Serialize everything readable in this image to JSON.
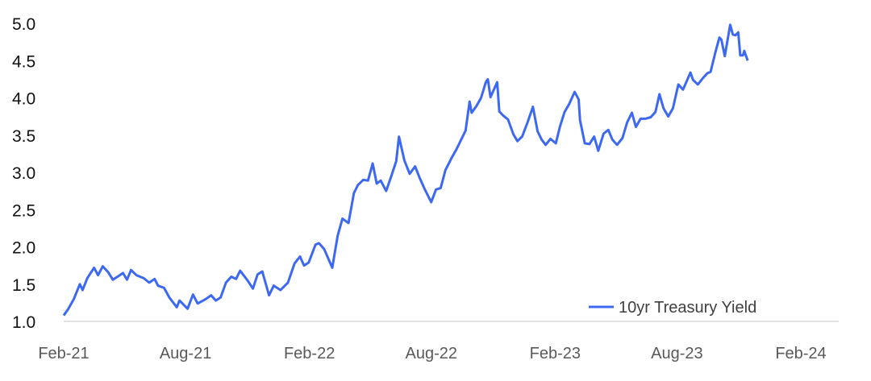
{
  "chart_data": {
    "type": "line",
    "title": "",
    "xlabel": "",
    "ylabel": "",
    "ylim": [
      1.0,
      5.0
    ],
    "y_ticks": [
      "1.0",
      "1.5",
      "2.0",
      "2.5",
      "3.0",
      "3.5",
      "4.0",
      "4.5",
      "5.0"
    ],
    "x_ticks": [
      {
        "label": "Feb-21",
        "date": "2021-02-01"
      },
      {
        "label": "Aug-21",
        "date": "2021-08-01"
      },
      {
        "label": "Feb-22",
        "date": "2022-02-01"
      },
      {
        "label": "Aug-22",
        "date": "2022-08-01"
      },
      {
        "label": "Feb-23",
        "date": "2023-02-01"
      },
      {
        "label": "Aug-23",
        "date": "2023-08-01"
      },
      {
        "label": "Feb-24",
        "date": "2024-02-01"
      }
    ],
    "grid": false,
    "legend": "bottom-right",
    "series": [
      {
        "name": "10yr Treasury Yield",
        "color": "#3d68f2",
        "points": [
          [
            "2021-02-01",
            1.08
          ],
          [
            "2021-02-08",
            1.17
          ],
          [
            "2021-02-16",
            1.3
          ],
          [
            "2021-02-25",
            1.5
          ],
          [
            "2021-03-01",
            1.42
          ],
          [
            "2021-03-08",
            1.58
          ],
          [
            "2021-03-18",
            1.72
          ],
          [
            "2021-03-24",
            1.62
          ],
          [
            "2021-03-31",
            1.74
          ],
          [
            "2021-04-08",
            1.66
          ],
          [
            "2021-04-15",
            1.56
          ],
          [
            "2021-04-22",
            1.6
          ],
          [
            "2021-04-30",
            1.65
          ],
          [
            "2021-05-06",
            1.56
          ],
          [
            "2021-05-12",
            1.69
          ],
          [
            "2021-05-20",
            1.62
          ],
          [
            "2021-05-31",
            1.58
          ],
          [
            "2021-06-08",
            1.52
          ],
          [
            "2021-06-16",
            1.57
          ],
          [
            "2021-06-21",
            1.48
          ],
          [
            "2021-06-30",
            1.45
          ],
          [
            "2021-07-08",
            1.32
          ],
          [
            "2021-07-19",
            1.19
          ],
          [
            "2021-07-23",
            1.28
          ],
          [
            "2021-08-04",
            1.17
          ],
          [
            "2021-08-12",
            1.36
          ],
          [
            "2021-08-19",
            1.24
          ],
          [
            "2021-08-31",
            1.3
          ],
          [
            "2021-09-08",
            1.35
          ],
          [
            "2021-09-15",
            1.28
          ],
          [
            "2021-09-22",
            1.32
          ],
          [
            "2021-09-30",
            1.52
          ],
          [
            "2021-10-08",
            1.6
          ],
          [
            "2021-10-15",
            1.57
          ],
          [
            "2021-10-21",
            1.68
          ],
          [
            "2021-11-01",
            1.55
          ],
          [
            "2021-11-09",
            1.44
          ],
          [
            "2021-11-16",
            1.63
          ],
          [
            "2021-11-23",
            1.67
          ],
          [
            "2021-12-03",
            1.35
          ],
          [
            "2021-12-10",
            1.48
          ],
          [
            "2021-12-20",
            1.42
          ],
          [
            "2021-12-31",
            1.52
          ],
          [
            "2022-01-10",
            1.78
          ],
          [
            "2022-01-18",
            1.87
          ],
          [
            "2022-01-24",
            1.75
          ],
          [
            "2022-01-31",
            1.79
          ],
          [
            "2022-02-10",
            2.03
          ],
          [
            "2022-02-15",
            2.05
          ],
          [
            "2022-02-23",
            1.97
          ],
          [
            "2022-03-07",
            1.72
          ],
          [
            "2022-03-15",
            2.15
          ],
          [
            "2022-03-22",
            2.38
          ],
          [
            "2022-03-31",
            2.32
          ],
          [
            "2022-04-08",
            2.72
          ],
          [
            "2022-04-14",
            2.83
          ],
          [
            "2022-04-22",
            2.9
          ],
          [
            "2022-04-29",
            2.89
          ],
          [
            "2022-05-06",
            3.12
          ],
          [
            "2022-05-12",
            2.85
          ],
          [
            "2022-05-18",
            2.89
          ],
          [
            "2022-05-26",
            2.75
          ],
          [
            "2022-06-03",
            2.96
          ],
          [
            "2022-06-10",
            3.15
          ],
          [
            "2022-06-14",
            3.48
          ],
          [
            "2022-06-22",
            3.16
          ],
          [
            "2022-06-30",
            2.98
          ],
          [
            "2022-07-08",
            3.08
          ],
          [
            "2022-07-15",
            2.92
          ],
          [
            "2022-07-22",
            2.78
          ],
          [
            "2022-08-01",
            2.6
          ],
          [
            "2022-08-08",
            2.77
          ],
          [
            "2022-08-15",
            2.79
          ],
          [
            "2022-08-22",
            3.03
          ],
          [
            "2022-08-31",
            3.19
          ],
          [
            "2022-09-08",
            3.32
          ],
          [
            "2022-09-15",
            3.45
          ],
          [
            "2022-09-21",
            3.56
          ],
          [
            "2022-09-27",
            3.95
          ],
          [
            "2022-09-30",
            3.8
          ],
          [
            "2022-10-07",
            3.89
          ],
          [
            "2022-10-14",
            4.0
          ],
          [
            "2022-10-21",
            4.21
          ],
          [
            "2022-10-24",
            4.25
          ],
          [
            "2022-10-28",
            4.01
          ],
          [
            "2022-11-07",
            4.21
          ],
          [
            "2022-11-10",
            3.82
          ],
          [
            "2022-11-15",
            3.77
          ],
          [
            "2022-11-23",
            3.71
          ],
          [
            "2022-12-01",
            3.51
          ],
          [
            "2022-12-07",
            3.42
          ],
          [
            "2022-12-14",
            3.48
          ],
          [
            "2022-12-22",
            3.67
          ],
          [
            "2022-12-30",
            3.88
          ],
          [
            "2023-01-06",
            3.55
          ],
          [
            "2023-01-12",
            3.44
          ],
          [
            "2023-01-18",
            3.37
          ],
          [
            "2023-01-25",
            3.45
          ],
          [
            "2023-02-02",
            3.39
          ],
          [
            "2023-02-08",
            3.61
          ],
          [
            "2023-02-15",
            3.81
          ],
          [
            "2023-02-22",
            3.92
          ],
          [
            "2023-03-02",
            4.08
          ],
          [
            "2023-03-08",
            3.98
          ],
          [
            "2023-03-10",
            3.7
          ],
          [
            "2023-03-17",
            3.39
          ],
          [
            "2023-03-24",
            3.38
          ],
          [
            "2023-03-31",
            3.48
          ],
          [
            "2023-04-06",
            3.29
          ],
          [
            "2023-04-14",
            3.52
          ],
          [
            "2023-04-21",
            3.57
          ],
          [
            "2023-04-27",
            3.44
          ],
          [
            "2023-05-04",
            3.37
          ],
          [
            "2023-05-12",
            3.46
          ],
          [
            "2023-05-19",
            3.67
          ],
          [
            "2023-05-26",
            3.8
          ],
          [
            "2023-06-01",
            3.61
          ],
          [
            "2023-06-08",
            3.72
          ],
          [
            "2023-06-15",
            3.72
          ],
          [
            "2023-06-23",
            3.74
          ],
          [
            "2023-06-30",
            3.81
          ],
          [
            "2023-07-06",
            4.05
          ],
          [
            "2023-07-12",
            3.86
          ],
          [
            "2023-07-19",
            3.75
          ],
          [
            "2023-07-26",
            3.86
          ],
          [
            "2023-08-03",
            4.18
          ],
          [
            "2023-08-10",
            4.11
          ],
          [
            "2023-08-21",
            4.34
          ],
          [
            "2023-08-25",
            4.24
          ],
          [
            "2023-09-01",
            4.18
          ],
          [
            "2023-09-08",
            4.26
          ],
          [
            "2023-09-15",
            4.33
          ],
          [
            "2023-09-20",
            4.35
          ],
          [
            "2023-09-27",
            4.61
          ],
          [
            "2023-10-03",
            4.81
          ],
          [
            "2023-10-06",
            4.78
          ],
          [
            "2023-10-11",
            4.56
          ],
          [
            "2023-10-19",
            4.98
          ],
          [
            "2023-10-23",
            4.85
          ],
          [
            "2023-10-27",
            4.84
          ],
          [
            "2023-10-31",
            4.88
          ],
          [
            "2023-11-03",
            4.57
          ],
          [
            "2023-11-07",
            4.57
          ],
          [
            "2023-11-09",
            4.63
          ],
          [
            "2023-11-14",
            4.5
          ]
        ]
      }
    ]
  }
}
